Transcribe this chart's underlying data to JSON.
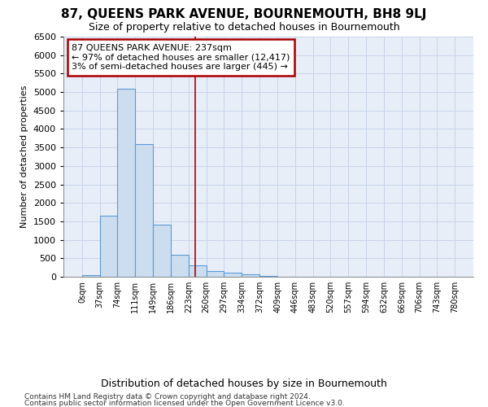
{
  "title": "87, QUEENS PARK AVENUE, BOURNEMOUTH, BH8 9LJ",
  "subtitle": "Size of property relative to detached houses in Bournemouth",
  "xlabel": "Distribution of detached houses by size in Bournemouth",
  "ylabel": "Number of detached properties",
  "footnote1": "Contains HM Land Registry data © Crown copyright and database right 2024.",
  "footnote2": "Contains public sector information licensed under the Open Government Licence v3.0.",
  "annotation_title": "87 QUEENS PARK AVENUE: 237sqm",
  "annotation_line1": "← 97% of detached houses are smaller (12,417)",
  "annotation_line2": "3% of semi-detached houses are larger (445) →",
  "property_size": 237,
  "bin_width": 37,
  "bin_starts": [
    0,
    37,
    74,
    111,
    149,
    186,
    223,
    260,
    297,
    334,
    372,
    409,
    446,
    483,
    520,
    557,
    594,
    632,
    669,
    706,
    743
  ],
  "bin_counts": [
    50,
    1650,
    5100,
    3600,
    1420,
    590,
    300,
    155,
    110,
    75,
    20,
    0,
    0,
    0,
    0,
    0,
    0,
    0,
    0,
    0,
    0
  ],
  "bar_color": "#ccddf0",
  "bar_edge_color": "#5b9bd5",
  "vline_color": "#aa0000",
  "vline_x": 237,
  "box_color": "#aa0000",
  "ylim": [
    0,
    6500
  ],
  "yticks": [
    0,
    500,
    1000,
    1500,
    2000,
    2500,
    3000,
    3500,
    4000,
    4500,
    5000,
    5500,
    6000,
    6500
  ],
  "grid_color": "#c8d4e8",
  "background_color": "#ffffff",
  "plot_bg_color": "#e8eef8"
}
